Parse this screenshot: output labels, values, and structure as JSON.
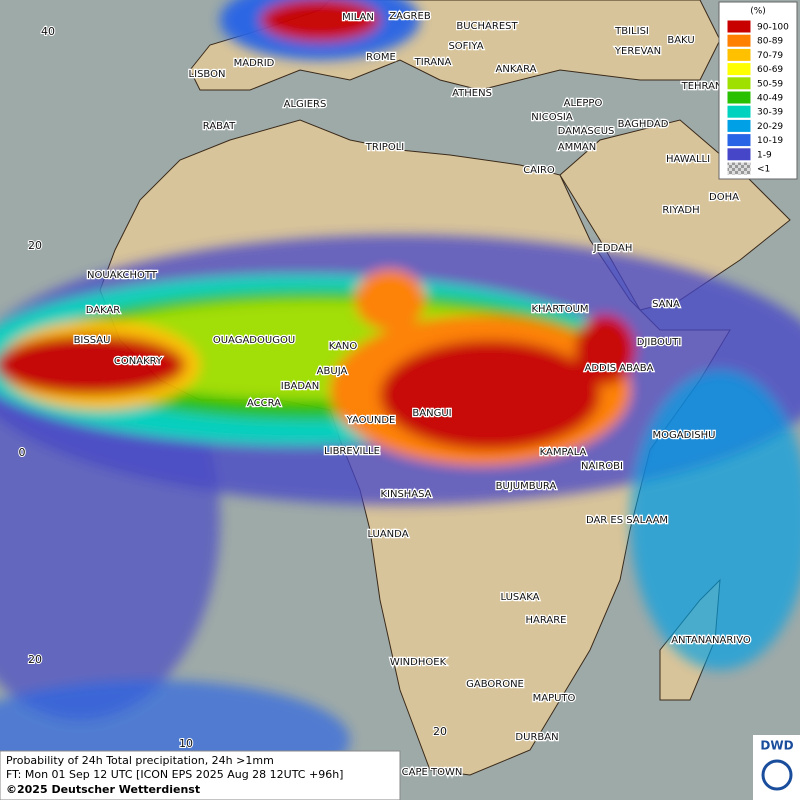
{
  "map": {
    "cities": [
      "MILAN",
      "ZAGREB",
      "BUCHAREST",
      "TBILISI",
      "BAKU",
      "YEREVAN",
      "LISBON",
      "MADRID",
      "ROME",
      "SOFIYA",
      "TIRANA",
      "ANKARA",
      "TEHRAN",
      "ATHENS",
      "ALGIERS",
      "RABAT",
      "ALEPPO",
      "NICOSIA",
      "BAGHDAD",
      "DAMASCUS",
      "TRIPOLI",
      "AMMAN",
      "HAWALLI",
      "CAIRO",
      "DOHA",
      "RIYADH",
      "JEDDAH",
      "NOUAKCHOTT",
      "SANA",
      "KHARTOUM",
      "DAKAR",
      "BISSAU",
      "OUAGADOUGOU",
      "KANO",
      "DJIBOUTI",
      "CONAKRY",
      "ABUJA",
      "ADDIS ABABA",
      "IBADAN",
      "ACCRA",
      "BANGUI",
      "YAOUNDE",
      "MOGADISHU",
      "LIBREVILLE",
      "KAMPALA",
      "NAIROBI",
      "KINSHASA",
      "BUJUMBURA",
      "DAR ES SALAAM",
      "LUANDA",
      "LUSAKA",
      "ANTANANARIVO",
      "HARARE",
      "WINDHOEK",
      "GABORONE",
      "MAPUTO",
      "DURBAN",
      "CAPE TOWN"
    ],
    "grid_labels": [
      "40",
      "20",
      "0",
      "20",
      "10",
      "20"
    ]
  },
  "legend": {
    "title": "(%)",
    "items": [
      {
        "label": "90-100",
        "color": "#c80000"
      },
      {
        "label": "80-89",
        "color": "#ff7f00"
      },
      {
        "label": "70-79",
        "color": "#ffc000"
      },
      {
        "label": "60-69",
        "color": "#ffff00"
      },
      {
        "label": "50-59",
        "color": "#a0e000"
      },
      {
        "label": "40-49",
        "color": "#28c000"
      },
      {
        "label": "30-39",
        "color": "#00d2c0"
      },
      {
        "label": "20-29",
        "color": "#00a0e6"
      },
      {
        "label": "10-19",
        "color": "#2864e6"
      },
      {
        "label": "1-9",
        "color": "#4646c8"
      },
      {
        "label": "<1",
        "color": "#b4b4b4"
      }
    ]
  },
  "footer": {
    "line1": "Probability of 24h Total precipitation, 24h >1mm",
    "line2": "FT: Mon 01 Sep 12 UTC [ICON EPS 2025 Aug 28 12UTC +96h]",
    "line3": "©2025 Deutscher Wetterdienst"
  },
  "logo": "DWD"
}
